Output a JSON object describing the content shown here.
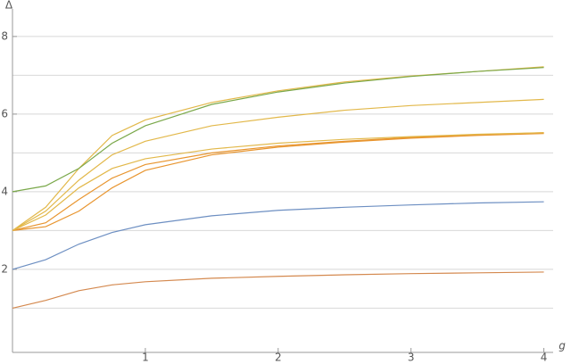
{
  "chart_data": {
    "type": "line",
    "y_label": "Δ",
    "x_label": "g",
    "x": [
      0,
      0.25,
      0.5,
      0.75,
      1,
      1.5,
      2,
      2.5,
      3,
      3.5,
      4
    ],
    "series": [
      {
        "color": "#d4894f",
        "values": [
          1.0,
          1.2,
          1.45,
          1.6,
          1.68,
          1.77,
          1.82,
          1.86,
          1.89,
          1.91,
          1.93
        ]
      },
      {
        "color": "#6d8fc2",
        "values": [
          2.0,
          2.25,
          2.65,
          2.95,
          3.15,
          3.38,
          3.52,
          3.6,
          3.66,
          3.71,
          3.74
        ]
      },
      {
        "color": "#e8952f",
        "values": [
          3.0,
          3.1,
          3.5,
          4.1,
          4.55,
          4.95,
          5.15,
          5.28,
          5.38,
          5.45,
          5.5
        ]
      },
      {
        "color": "#e8952f",
        "values": [
          3.0,
          3.2,
          3.8,
          4.35,
          4.7,
          5.0,
          5.18,
          5.3,
          5.4,
          5.46,
          5.52
        ]
      },
      {
        "color": "#e2b84a",
        "values": [
          3.0,
          3.4,
          4.1,
          4.6,
          4.85,
          5.1,
          5.25,
          5.35,
          5.42,
          5.48,
          5.52
        ]
      },
      {
        "color": "#e2b84a",
        "values": [
          3.0,
          3.5,
          4.3,
          4.95,
          5.3,
          5.7,
          5.92,
          6.1,
          6.22,
          6.3,
          6.38
        ]
      },
      {
        "color": "#e2b84a",
        "values": [
          3.0,
          3.6,
          4.6,
          5.45,
          5.85,
          6.3,
          6.6,
          6.83,
          6.98,
          7.1,
          7.22
        ]
      },
      {
        "color": "#7aa84a",
        "values": [
          4.0,
          4.15,
          4.6,
          5.25,
          5.7,
          6.25,
          6.57,
          6.8,
          6.97,
          7.1,
          7.2
        ]
      }
    ],
    "xlim": [
      0,
      4.07
    ],
    "ylim": [
      -0.14,
      8.71
    ],
    "xticks": [
      1,
      2,
      3,
      4
    ],
    "yticks": [
      2,
      4,
      6,
      8
    ],
    "ygrid": [
      1,
      2,
      3,
      4,
      5,
      6,
      7,
      8
    ],
    "grid": true
  }
}
